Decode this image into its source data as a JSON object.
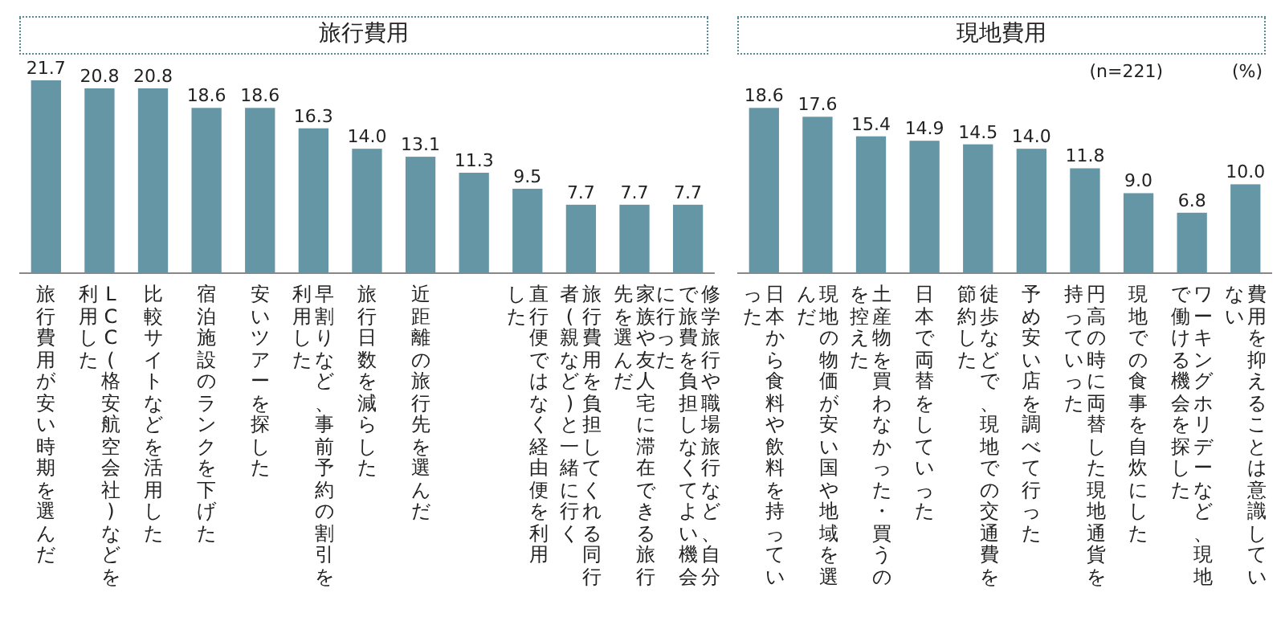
{
  "chart_data": [
    {
      "type": "bar",
      "title": "旅行費用",
      "categories": [
        "旅行費用が安い時期を選んだ",
        "LCC(格安航空会社)などを利用した",
        "比較サイトなどを活用した",
        "宿泊施設のランクを下げた",
        "安いツアーを探した",
        "早割りなど、事前予約の割引を利用した",
        "旅行日数を減らした",
        "近距離の旅行先を選んだ",
        null,
        "直行便ではなく経由便を利用した",
        "旅行費用を負担してくれる同行者(親など)と一緒に行く",
        "家族や友人宅に滞在できる旅行先を選んだ",
        "修学旅行や職場旅行など、自分で旅費を負担しなくてよい機会に行った"
      ],
      "values": [
        21.7,
        20.8,
        20.8,
        18.6,
        18.6,
        16.3,
        14.0,
        13.1,
        11.3,
        9.5,
        7.7,
        7.7,
        7.7
      ],
      "color": "#6596a6",
      "value_labels": [
        "21.7",
        "20.8",
        "20.8",
        "18.6",
        "18.6",
        "16.3",
        "14.0",
        "13.1",
        "11.3",
        "9.5",
        "7.7",
        "7.7",
        "7.7"
      ]
    },
    {
      "type": "bar",
      "title": "現地費用",
      "categories": [
        "日本から食料や飲料を持っていった",
        "現地の物価が安い国や地域を選んだ",
        "土産物を買わなかった・買うのを控えた",
        "日本で両替をしていった",
        "徒歩などで、現地での交通費を節約した",
        "予め安い店を調べて行った",
        "円高の時に両替した現地通貨を持っていった",
        "現地での食事を自炊にした",
        "ワーキングホリデーなど、現地で働ける機会を探した",
        "費用を抑えることは意識していない"
      ],
      "values": [
        18.6,
        17.6,
        15.4,
        14.9,
        14.5,
        14.0,
        11.8,
        9.0,
        6.8,
        10.0
      ],
      "color": "#6596a6",
      "value_labels": [
        "18.6",
        "17.6",
        "15.4",
        "14.9",
        "14.5",
        "14.0",
        "11.8",
        "9.0",
        "6.8",
        "10.0"
      ],
      "annotations": [
        "(n=221)",
        "(%)"
      ]
    }
  ]
}
